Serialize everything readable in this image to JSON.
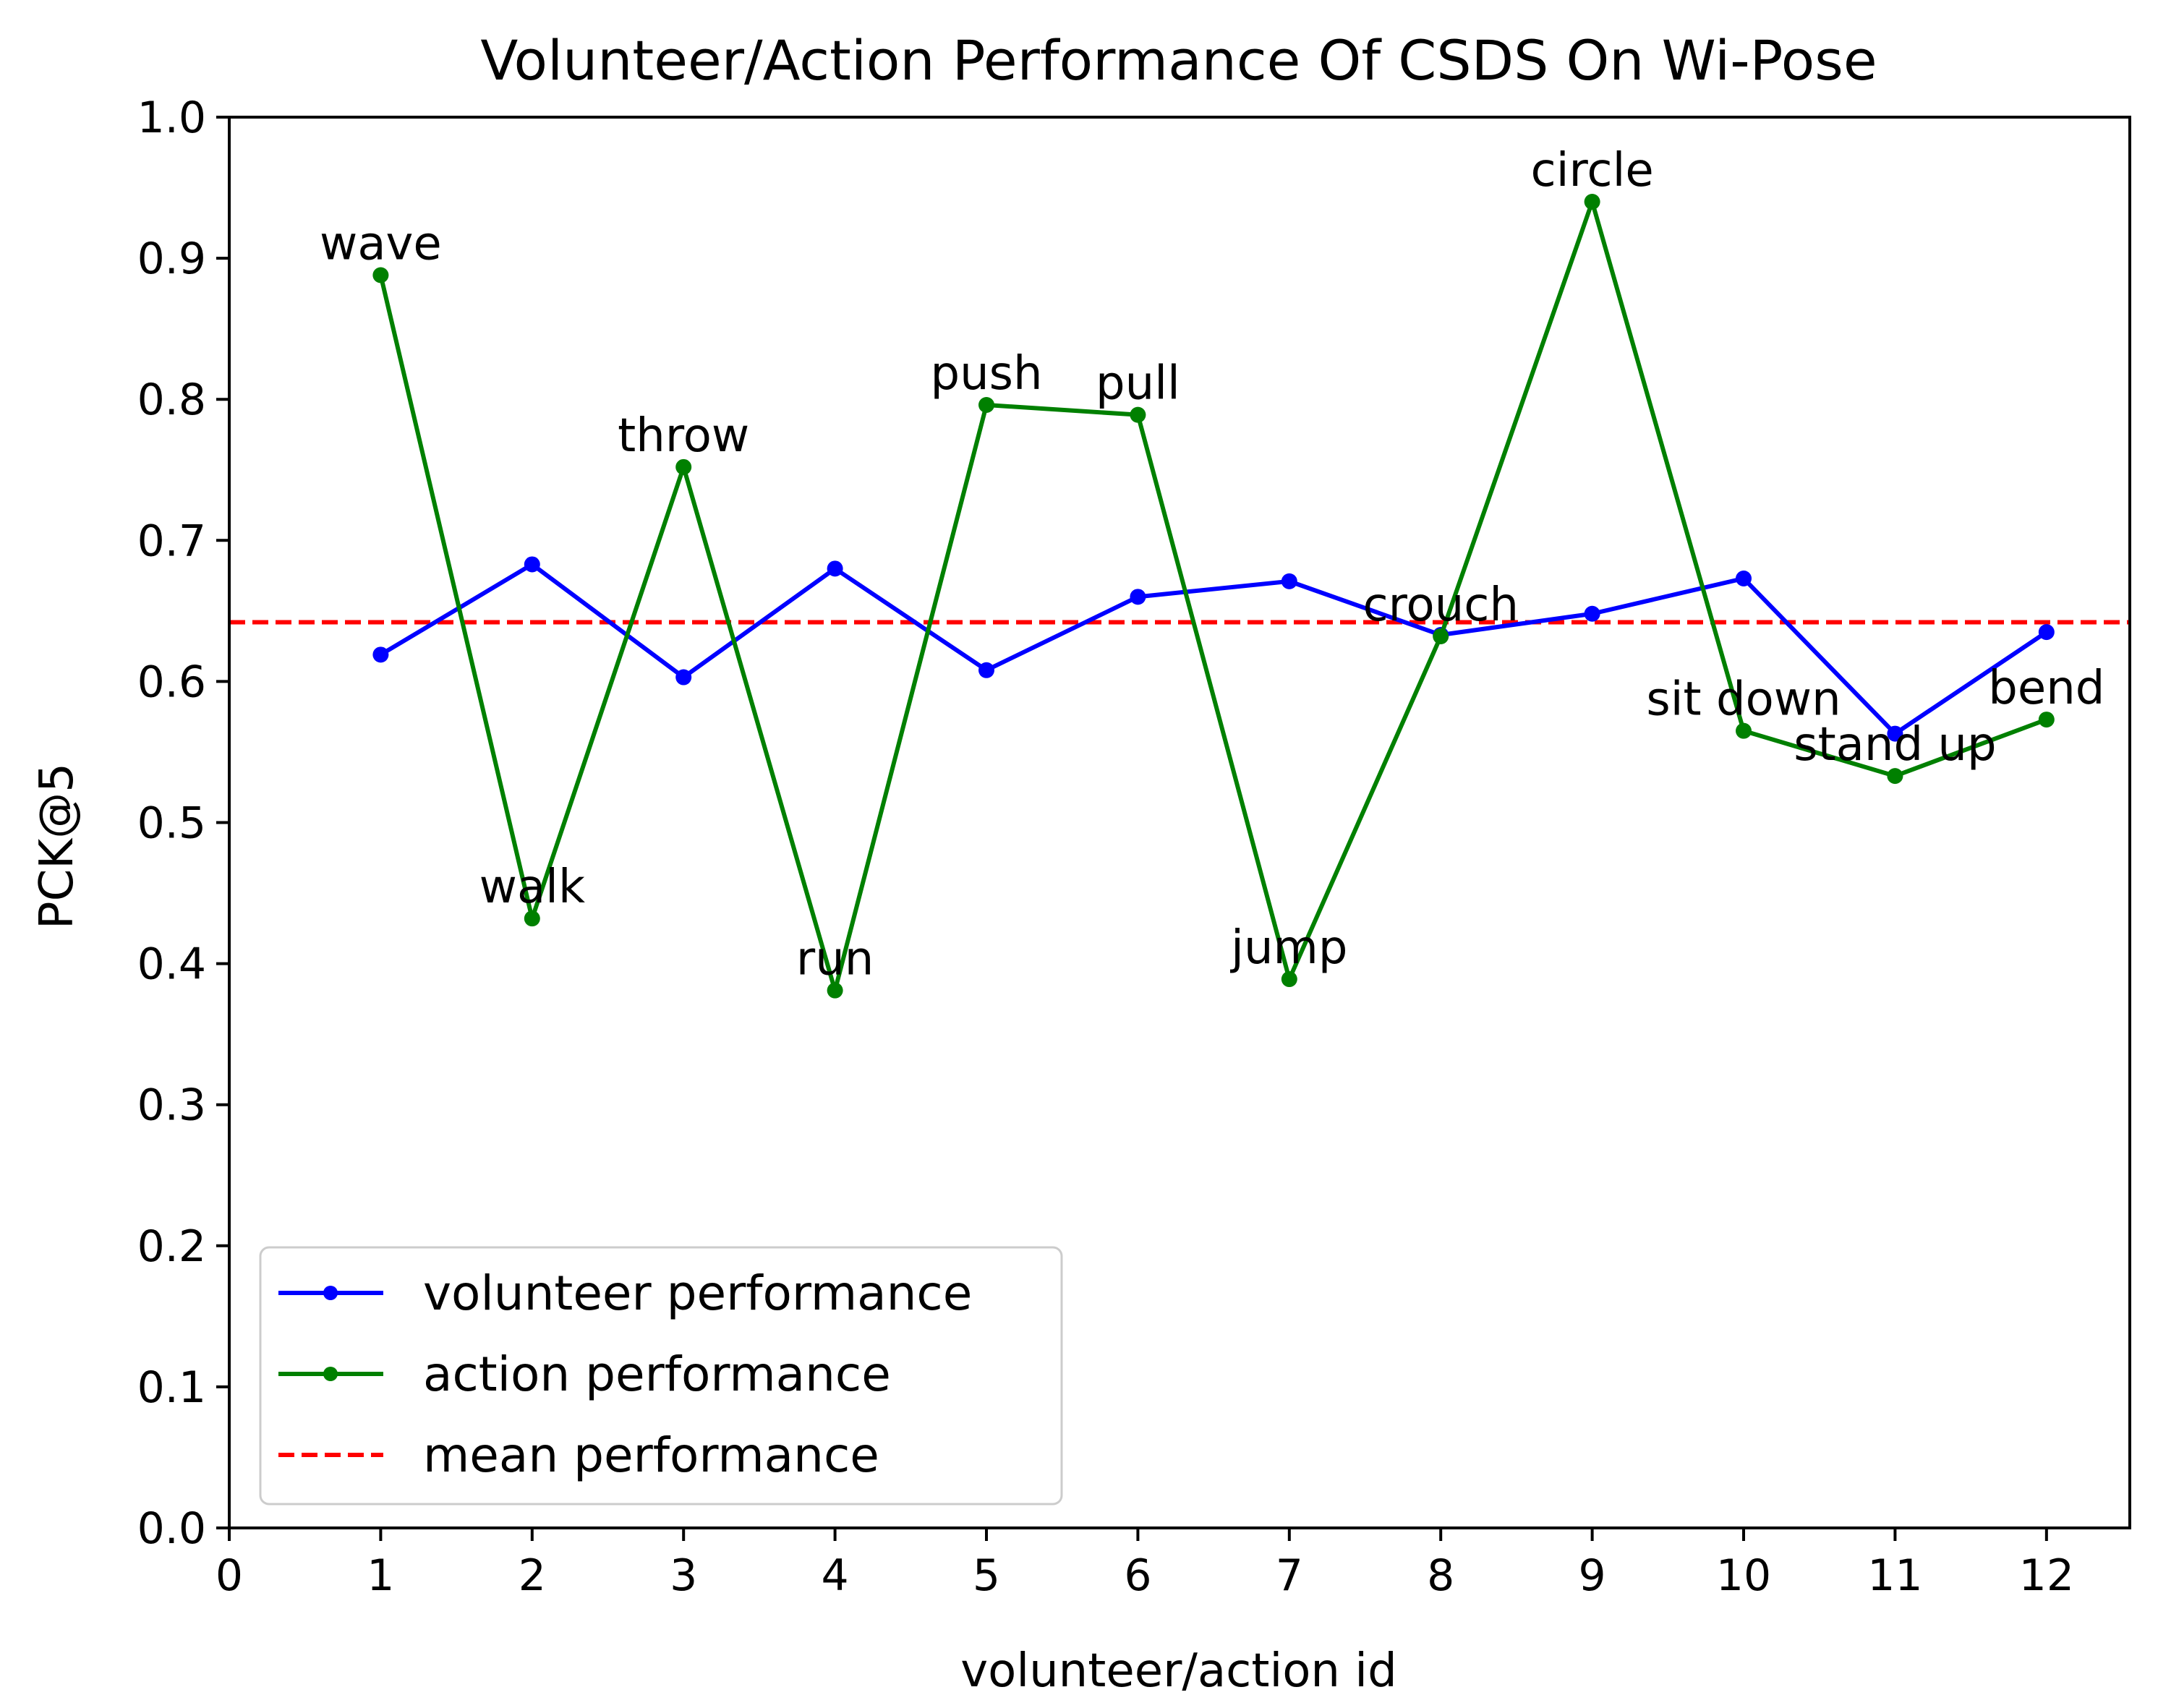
{
  "chart_data": {
    "type": "line",
    "title": "Volunteer/Action Performance Of CSDS On Wi-Pose",
    "xlabel": "volunteer/action id",
    "ylabel": "PCK@5",
    "xlim": [
      0,
      12.55
    ],
    "ylim": [
      0,
      1.0
    ],
    "xticks": [
      0,
      1,
      2,
      3,
      4,
      5,
      6,
      7,
      8,
      9,
      10,
      11,
      12
    ],
    "yticks": [
      0.0,
      0.1,
      0.2,
      0.3,
      0.4,
      0.5,
      0.6,
      0.7,
      0.8,
      0.9,
      1.0
    ],
    "ytick_labels": [
      "0.0",
      "0.1",
      "0.2",
      "0.3",
      "0.4",
      "0.5",
      "0.6",
      "0.7",
      "0.8",
      "0.9",
      "1.0"
    ],
    "x": [
      1,
      2,
      3,
      4,
      5,
      6,
      7,
      8,
      9,
      10,
      11,
      12
    ],
    "series": [
      {
        "name": "volunteer performance",
        "color": "#0000ff",
        "style": "solid",
        "marker": "circle",
        "values": [
          0.619,
          0.683,
          0.603,
          0.68,
          0.608,
          0.66,
          0.671,
          0.633,
          0.648,
          0.673,
          0.563,
          0.635
        ]
      },
      {
        "name": "action performance",
        "color": "#008000",
        "style": "solid",
        "marker": "circle",
        "values": [
          0.888,
          0.432,
          0.752,
          0.381,
          0.796,
          0.789,
          0.389,
          0.632,
          0.94,
          0.565,
          0.533,
          0.573
        ]
      }
    ],
    "mean_line": {
      "name": "mean performance",
      "color": "#ff0000",
      "style": "dashed",
      "value": 0.642
    },
    "annotations": [
      {
        "text": "wave",
        "x": 1,
        "y": 0.888
      },
      {
        "text": "walk",
        "x": 2,
        "y": 0.432
      },
      {
        "text": "throw",
        "x": 3,
        "y": 0.752
      },
      {
        "text": "run",
        "x": 4,
        "y": 0.381
      },
      {
        "text": "push",
        "x": 5,
        "y": 0.796
      },
      {
        "text": "pull",
        "x": 6,
        "y": 0.789
      },
      {
        "text": "jump",
        "x": 7,
        "y": 0.389
      },
      {
        "text": "crouch",
        "x": 8,
        "y": 0.632
      },
      {
        "text": "circle",
        "x": 9,
        "y": 0.94
      },
      {
        "text": "sit down",
        "x": 10,
        "y": 0.565
      },
      {
        "text": "stand up",
        "x": 11,
        "y": 0.533
      },
      {
        "text": "bend",
        "x": 12,
        "y": 0.573
      }
    ],
    "legend": {
      "placement": "lower-left",
      "entries": [
        "volunteer performance",
        "action performance",
        "mean performance"
      ]
    },
    "grid": false
  }
}
